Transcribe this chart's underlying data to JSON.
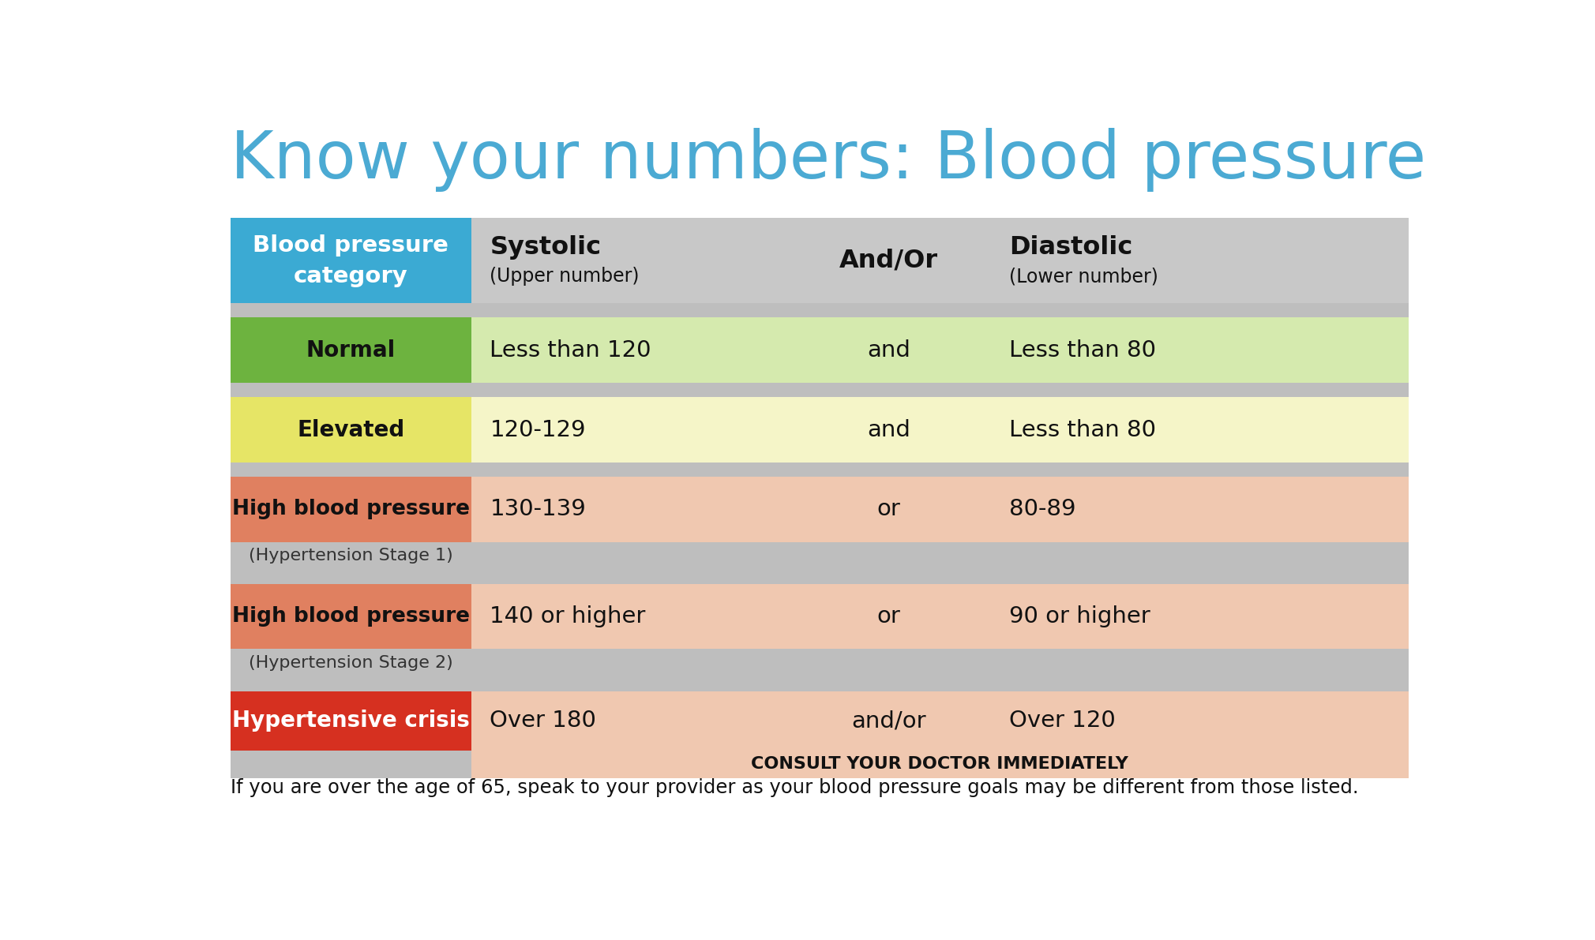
{
  "title": "Know your numbers: Blood pressure",
  "title_color": "#4BAAD3",
  "footer": "If you are over the age of 65, speak to your provider as your blood pressure goals may be different from those listed.",
  "bg_color": "#FFFFFF",
  "table_bg": "#BEBEBE",
  "header": {
    "col0_text": "Blood pressure\ncategory",
    "col0_bg": "#3BAAD3",
    "col0_text_color": "#FFFFFF",
    "header_bg": "#C8C8C8",
    "header_text_color": "#111111"
  },
  "rows": [
    {
      "category": "Normal",
      "systolic": "Less than 120",
      "andor": "and",
      "diastolic": "Less than 80",
      "cat_bg": "#6DB33F",
      "data_bg": "#D5EAAE",
      "cat_text_color": "#111111",
      "data_text_color": "#111111",
      "subtitle": null,
      "subtitle_in_gray": false
    },
    {
      "category": "Elevated",
      "systolic": "120-129",
      "andor": "and",
      "diastolic": "Less than 80",
      "cat_bg": "#E6E566",
      "data_bg": "#F5F5C8",
      "cat_text_color": "#111111",
      "data_text_color": "#111111",
      "subtitle": null,
      "subtitle_in_gray": false
    },
    {
      "category": "High blood pressure",
      "systolic": "130-139",
      "andor": "or",
      "diastolic": "80-89",
      "cat_bg": "#E08060",
      "data_bg": "#F0C8B0",
      "cat_text_color": "#111111",
      "data_text_color": "#111111",
      "subtitle": "(Hypertension Stage 1)",
      "subtitle_in_gray": true
    },
    {
      "category": "High blood pressure",
      "systolic": "140 or higher",
      "andor": "or",
      "diastolic": "90 or higher",
      "cat_bg": "#E08060",
      "data_bg": "#F0C8B0",
      "cat_text_color": "#111111",
      "data_text_color": "#111111",
      "subtitle": "(Hypertension Stage 2)",
      "subtitle_in_gray": true
    },
    {
      "category": "Hypertensive crisis",
      "systolic": "Over 180",
      "andor": "and/or",
      "diastolic": "Over 120",
      "cat_bg": "#D63020",
      "data_bg": "#F0C8B0",
      "cat_text_color": "#FFFFFF",
      "data_text_color": "#111111",
      "subtitle": "CONSULT YOUR DOCTOR IMMEDIATELY",
      "subtitle_in_gray": false
    }
  ]
}
